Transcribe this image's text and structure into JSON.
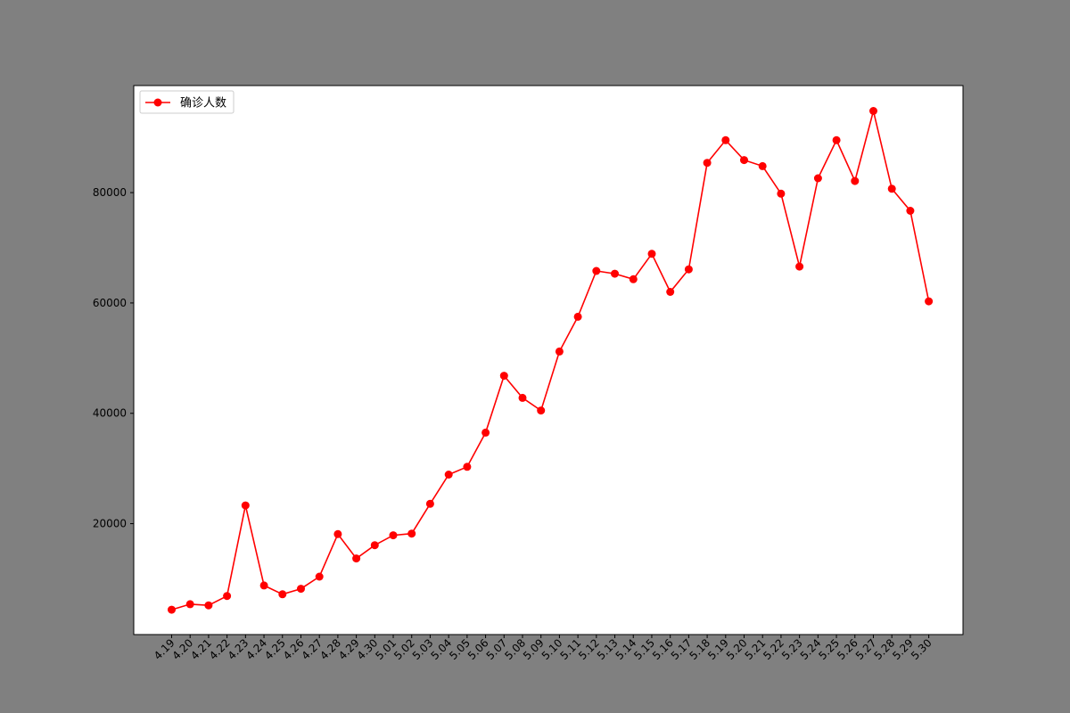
{
  "chart_data": {
    "type": "line",
    "title": "",
    "xlabel": "",
    "ylabel": "",
    "categories": [
      "4.19",
      "4.20",
      "4.21",
      "4.22",
      "4.23",
      "4.24",
      "4.25",
      "4.26",
      "4.27",
      "4.28",
      "4.29",
      "4.30",
      "5.01",
      "5.02",
      "5.03",
      "5.04",
      "5.05",
      "5.06",
      "5.07",
      "5.08",
      "5.09",
      "5.10",
      "5.11",
      "5.12",
      "5.13",
      "5.14",
      "5.15",
      "5.16",
      "5.17",
      "5.18",
      "5.19",
      "5.20",
      "5.21",
      "5.22",
      "5.23",
      "5.24",
      "5.25",
      "5.26",
      "5.27",
      "5.28",
      "5.29",
      "5.30"
    ],
    "series": [
      {
        "name": "确诊人数",
        "color": "#ff0000",
        "marker": "circle",
        "values": [
          4400,
          5400,
          5200,
          6900,
          23300,
          8800,
          7200,
          8200,
          10400,
          18100,
          13700,
          16100,
          17900,
          18200,
          23600,
          28900,
          30300,
          36500,
          46800,
          42800,
          40500,
          51200,
          57500,
          65800,
          65300,
          64300,
          68900,
          62000,
          66100,
          85400,
          89500,
          85900,
          84800,
          79800,
          66600,
          82600,
          89500,
          82100,
          94800,
          80700,
          76700,
          60300
        ]
      }
    ],
    "yticks": [
      20000,
      40000,
      60000,
      80000
    ],
    "ylim": [
      -100,
      99400
    ],
    "grid": false,
    "legend": "top-left",
    "colors": {
      "figure_bg": "#808080",
      "axes_bg": "#ffffff",
      "line": "#ff0000"
    }
  }
}
